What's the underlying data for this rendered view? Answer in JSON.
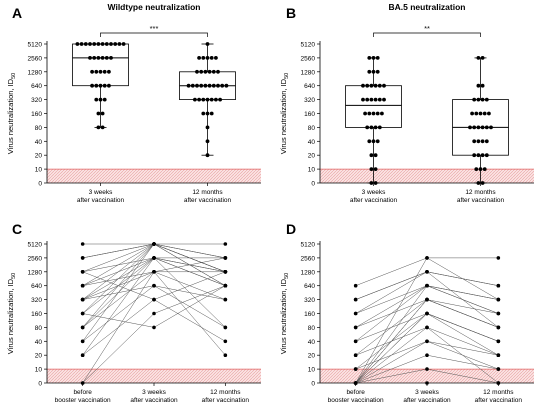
{
  "figure": {
    "panels": [
      "A",
      "B",
      "C",
      "D"
    ]
  },
  "chart_data": [
    {
      "panel": "A",
      "type": "box-dot",
      "title": "Wildtype neutralization",
      "ylabel_main": "Virus neutralization, ID",
      "ylabel_sub": "50",
      "y_scale": "log2",
      "ylim": [
        0,
        5120
      ],
      "y_ticks": [
        "5120",
        "2560",
        "1280",
        "640",
        "320",
        "160",
        "80",
        "40",
        "20",
        "10",
        "0"
      ],
      "categories": [
        "3 weeks|after vaccination",
        "12 months|after vaccination"
      ],
      "significance": "***",
      "series": [
        {
          "values": [
            5120,
            5120,
            5120,
            5120,
            5120,
            5120,
            5120,
            5120,
            5120,
            5120,
            5120,
            5120,
            2560,
            2560,
            2560,
            2560,
            2560,
            2560,
            1280,
            1280,
            1280,
            1280,
            1280,
            640,
            640,
            640,
            640,
            640,
            320,
            320,
            320,
            160,
            160,
            80,
            80
          ],
          "box": {
            "q1": 640,
            "median": 2560,
            "q3": 5120,
            "min": 80,
            "max": 5120
          }
        },
        {
          "values": [
            5120,
            2560,
            2560,
            2560,
            2560,
            2560,
            1280,
            1280,
            1280,
            1280,
            1280,
            1280,
            640,
            640,
            640,
            640,
            640,
            640,
            640,
            640,
            640,
            640,
            320,
            320,
            320,
            320,
            320,
            320,
            320,
            160,
            160,
            160,
            80,
            40,
            20
          ],
          "box": {
            "q1": 320,
            "median": 640,
            "q3": 1280,
            "min": 20,
            "max": 5120
          }
        }
      ]
    },
    {
      "panel": "B",
      "type": "box-dot",
      "title": "BA.5 neutralization",
      "ylabel_main": "Virus neutralization, ID",
      "ylabel_sub": "50",
      "y_scale": "log2",
      "ylim": [
        0,
        5120
      ],
      "y_ticks": [
        "5120",
        "2560",
        "1280",
        "640",
        "320",
        "160",
        "80",
        "40",
        "20",
        "10",
        "0"
      ],
      "categories": [
        "3 weeks|after vaccination",
        "12 months|after vaccination"
      ],
      "significance": "**",
      "series": [
        {
          "values": [
            2560,
            2560,
            2560,
            1280,
            1280,
            1280,
            640,
            640,
            640,
            640,
            640,
            640,
            320,
            320,
            320,
            320,
            320,
            320,
            160,
            160,
            160,
            160,
            160,
            80,
            80,
            80,
            80,
            40,
            40,
            40,
            20,
            20,
            10,
            10,
            0,
            0
          ],
          "box": {
            "q1": 80,
            "median": 240,
            "q3": 640,
            "min": 0,
            "max": 2560
          }
        },
        {
          "values": [
            2560,
            2560,
            640,
            640,
            320,
            320,
            320,
            320,
            160,
            160,
            160,
            160,
            160,
            80,
            80,
            80,
            80,
            80,
            80,
            40,
            40,
            40,
            40,
            20,
            20,
            20,
            20,
            10,
            10,
            10,
            0,
            0
          ],
          "box": {
            "q1": 20,
            "median": 80,
            "q3": 320,
            "min": 0,
            "max": 2560
          }
        }
      ]
    },
    {
      "panel": "C",
      "type": "paired-line",
      "ylabel_main": "Virus neutralization, ID",
      "ylabel_sub": "50",
      "y_scale": "log2",
      "ylim": [
        0,
        5120
      ],
      "y_ticks": [
        "5120",
        "2560",
        "1280",
        "640",
        "320",
        "160",
        "80",
        "40",
        "20",
        "10",
        "0"
      ],
      "categories": [
        "before|booster vaccination",
        "3 weeks|after vaccination",
        "12 months|after vaccination"
      ],
      "pairs": [
        [
          5120,
          5120,
          2560
        ],
        [
          2560,
          5120,
          5120
        ],
        [
          2560,
          5120,
          1280
        ],
        [
          1280,
          5120,
          640
        ],
        [
          1280,
          2560,
          2560
        ],
        [
          640,
          5120,
          1280
        ],
        [
          640,
          2560,
          640
        ],
        [
          320,
          5120,
          1280
        ],
        [
          320,
          1280,
          2560
        ],
        [
          320,
          640,
          320
        ],
        [
          160,
          5120,
          640
        ],
        [
          160,
          2560,
          1280
        ],
        [
          80,
          2560,
          640
        ],
        [
          80,
          1280,
          320
        ],
        [
          40,
          5120,
          1280
        ],
        [
          40,
          640,
          80
        ],
        [
          20,
          2560,
          1280
        ],
        [
          20,
          320,
          40
        ],
        [
          0,
          1280,
          20
        ],
        [
          0,
          160,
          640
        ],
        [
          640,
          1280,
          1280
        ],
        [
          160,
          80,
          640
        ],
        [
          80,
          5120,
          2560
        ],
        [
          320,
          2560,
          80
        ],
        [
          1280,
          320,
          1280
        ]
      ]
    },
    {
      "panel": "D",
      "type": "paired-line",
      "ylabel_main": "Virus neutralization, ID",
      "ylabel_sub": "50",
      "y_scale": "log2",
      "ylim": [
        0,
        5120
      ],
      "y_ticks": [
        "5120",
        "2560",
        "1280",
        "640",
        "320",
        "160",
        "80",
        "40",
        "20",
        "10",
        "0"
      ],
      "categories": [
        "before|booster vaccination",
        "3 weeks|after vaccination",
        "12 months|after vaccination"
      ],
      "pairs": [
        [
          640,
          2560,
          320
        ],
        [
          320,
          1280,
          640
        ],
        [
          160,
          640,
          160
        ],
        [
          80,
          320,
          80
        ],
        [
          40,
          160,
          40
        ],
        [
          20,
          80,
          20
        ],
        [
          10,
          40,
          10
        ],
        [
          0,
          2560,
          2560
        ],
        [
          0,
          640,
          320
        ],
        [
          0,
          320,
          80
        ],
        [
          0,
          160,
          40
        ],
        [
          0,
          80,
          0
        ],
        [
          0,
          40,
          20
        ],
        [
          0,
          10,
          0
        ],
        [
          0,
          0,
          0
        ],
        [
          160,
          1280,
          640
        ],
        [
          80,
          640,
          160
        ],
        [
          20,
          320,
          80
        ],
        [
          10,
          160,
          40
        ],
        [
          0,
          20,
          10
        ],
        [
          40,
          640,
          320
        ],
        [
          0,
          320,
          160
        ],
        [
          320,
          1280,
          80
        ],
        [
          0,
          160,
          20
        ]
      ]
    }
  ]
}
